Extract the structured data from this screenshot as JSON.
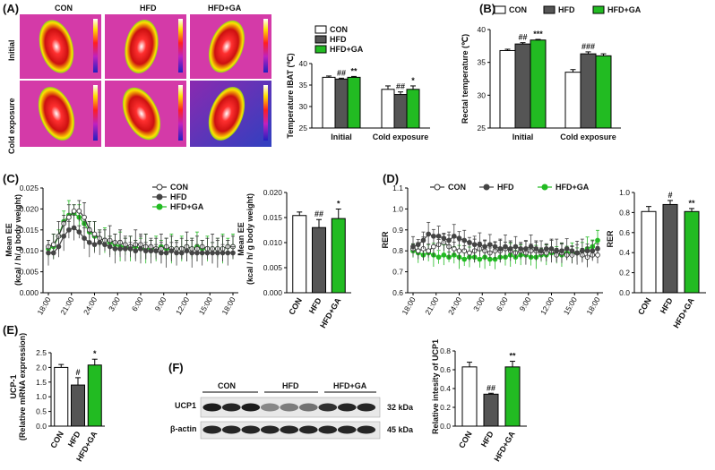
{
  "colors": {
    "con": "#ffffff",
    "hfd": "#555555",
    "hfdga": "#22bb22",
    "pink": "#d43aa8"
  },
  "panels": {
    "a": {
      "label": "(A)",
      "col_con": "CON",
      "col_hfd": "HFD",
      "col_hfdga": "HFD+GA",
      "row_initial": "Initial",
      "row_cold": "Cold exposure"
    },
    "f": {
      "label": "(F)",
      "con": "CON",
      "hfd": "HFD",
      "hfdga": "HFD+GA",
      "ucp1": "UCP1",
      "actin": "β-actin",
      "kda32": "32 kDa",
      "kda45": "45 kDa"
    }
  },
  "chart_data": [
    {
      "id": "a_chart",
      "type": "bar",
      "ylabel": "Temperature IBAT (℃)",
      "ylim": [
        25,
        40
      ],
      "yticks": [
        "25",
        "30",
        "35",
        "40"
      ],
      "groups": [
        "Initial",
        "Cold exposure"
      ],
      "legend": [
        "CON",
        "HFD",
        "HFD+GA"
      ],
      "series": [
        {
          "name": "CON",
          "values": [
            36.8,
            34.0
          ],
          "err": [
            0.3,
            0.8
          ]
        },
        {
          "name": "HFD",
          "values": [
            36.4,
            32.8
          ],
          "err": [
            0.2,
            0.6
          ]
        },
        {
          "name": "HFD+GA",
          "values": [
            36.8,
            34.0
          ],
          "err": [
            0.2,
            0.8
          ]
        }
      ],
      "annotations": [
        [
          "",
          "##",
          "**"
        ],
        [
          "",
          "##",
          "*"
        ]
      ]
    },
    {
      "id": "b_chart",
      "label": "(B)",
      "type": "bar",
      "ylabel": "Rectal temperature (℃)",
      "ylim": [
        25,
        40
      ],
      "yticks": [
        "25",
        "30",
        "35",
        "40"
      ],
      "groups": [
        "Initial",
        "Cold exposure"
      ],
      "legend": [
        "CON",
        "HFD",
        "HFD+GA"
      ],
      "series": [
        {
          "name": "CON",
          "values": [
            36.8,
            33.5
          ],
          "err": [
            0.2,
            0.4
          ]
        },
        {
          "name": "HFD",
          "values": [
            37.8,
            36.3
          ],
          "err": [
            0.2,
            0.3
          ]
        },
        {
          "name": "HFD+GA",
          "values": [
            38.4,
            36.0
          ],
          "err": [
            0.1,
            0.3
          ]
        }
      ],
      "annotations": [
        [
          "",
          "##",
          "***"
        ],
        [
          "",
          "###",
          ""
        ]
      ]
    },
    {
      "id": "c_line",
      "label": "(C)",
      "type": "line",
      "ylabel": "Mean EE",
      "ylabel2": "(kcal / h/ g body weight)",
      "ylim": [
        0,
        0.025
      ],
      "yticks": [
        "0.000",
        "0.005",
        "0.010",
        "0.015",
        "0.020",
        "0.025"
      ],
      "xticks": [
        "18:00",
        "21:00",
        "24:00",
        "3:00",
        "6:00",
        "9:00",
        "12:00",
        "15:00",
        "18:00"
      ],
      "legend": [
        "CON",
        "HFD",
        "HFD+GA"
      ],
      "series": [
        {
          "name": "CON",
          "values": [
            0.011,
            0.0115,
            0.0135,
            0.0165,
            0.018,
            0.0195,
            0.0195,
            0.018,
            0.015,
            0.014,
            0.013,
            0.0125,
            0.0125,
            0.012,
            0.012,
            0.0115,
            0.011,
            0.0115,
            0.0115,
            0.011,
            0.011,
            0.0105,
            0.0105,
            0.011,
            0.0105,
            0.0105,
            0.0105,
            0.011,
            0.0105,
            0.0105,
            0.011,
            0.0105,
            0.0105,
            0.0105,
            0.0105,
            0.011,
            0.011
          ]
        },
        {
          "name": "HFD",
          "values": [
            0.0095,
            0.0095,
            0.011,
            0.0135,
            0.015,
            0.0155,
            0.0145,
            0.013,
            0.012,
            0.0115,
            0.012,
            0.0115,
            0.011,
            0.0105,
            0.0105,
            0.0105,
            0.0105,
            0.01,
            0.0105,
            0.01,
            0.01,
            0.01,
            0.0095,
            0.0095,
            0.01,
            0.0095,
            0.0095,
            0.01,
            0.0095,
            0.0095,
            0.0095,
            0.0095,
            0.0095,
            0.0095,
            0.0095,
            0.0095,
            0.0095
          ]
        },
        {
          "name": "HFD+GA",
          "values": [
            0.0105,
            0.011,
            0.0135,
            0.017,
            0.0185,
            0.019,
            0.018,
            0.0165,
            0.0145,
            0.0135,
            0.013,
            0.0125,
            0.012,
            0.0115,
            0.011,
            0.011,
            0.0105,
            0.011,
            0.0105,
            0.0105,
            0.0105,
            0.0105,
            0.011,
            0.0105,
            0.0105,
            0.0105,
            0.0105,
            0.011,
            0.0105,
            0.011,
            0.0105,
            0.0105,
            0.0105,
            0.0105,
            0.0105,
            0.011,
            0.011
          ]
        }
      ],
      "err": 0.0025
    },
    {
      "id": "c_bar",
      "type": "bar",
      "ylabel": "Mean EE",
      "ylabel2": "(kcal / h/ g body weight)",
      "ylim": [
        0,
        0.02
      ],
      "yticks": [
        "0.000",
        "0.005",
        "0.010",
        "0.015",
        "0.020"
      ],
      "categories": [
        "CON",
        "HFD",
        "HFD+GA"
      ],
      "values": [
        0.0154,
        0.013,
        0.0148
      ],
      "err": [
        0.0007,
        0.0016,
        0.0019
      ],
      "annotations": [
        "",
        "##",
        "*"
      ]
    },
    {
      "id": "d_line",
      "label": "(D)",
      "type": "line",
      "ylabel": "RER",
      "ylim": [
        0.6,
        1.1
      ],
      "yticks": [
        "0.6",
        "0.7",
        "0.8",
        "0.9",
        "1.0",
        "1.1"
      ],
      "xticks": [
        "18:00",
        "21:00",
        "24:00",
        "3:00",
        "6:00",
        "9:00",
        "12:00",
        "15:00",
        "18:00"
      ],
      "legend": [
        "CON",
        "HFD",
        "HFD+GA"
      ],
      "series": [
        {
          "name": "CON",
          "values": [
            0.81,
            0.8,
            0.81,
            0.8,
            0.82,
            0.83,
            0.84,
            0.82,
            0.81,
            0.8,
            0.8,
            0.79,
            0.8,
            0.81,
            0.8,
            0.79,
            0.8,
            0.8,
            0.81,
            0.8,
            0.79,
            0.8,
            0.79,
            0.8,
            0.8,
            0.79,
            0.79,
            0.8,
            0.78,
            0.79,
            0.78,
            0.78,
            0.79,
            0.78,
            0.77,
            0.78,
            0.78
          ]
        },
        {
          "name": "HFD",
          "values": [
            0.82,
            0.83,
            0.85,
            0.88,
            0.87,
            0.87,
            0.86,
            0.85,
            0.87,
            0.86,
            0.85,
            0.84,
            0.83,
            0.83,
            0.82,
            0.83,
            0.82,
            0.81,
            0.82,
            0.81,
            0.82,
            0.81,
            0.81,
            0.82,
            0.81,
            0.8,
            0.81,
            0.81,
            0.8,
            0.8,
            0.81,
            0.8,
            0.79,
            0.8,
            0.8,
            0.8,
            0.81
          ]
        },
        {
          "name": "HFD+GA",
          "values": [
            0.8,
            0.79,
            0.78,
            0.79,
            0.78,
            0.77,
            0.78,
            0.77,
            0.78,
            0.77,
            0.76,
            0.77,
            0.77,
            0.76,
            0.77,
            0.76,
            0.76,
            0.77,
            0.77,
            0.78,
            0.77,
            0.78,
            0.78,
            0.77,
            0.77,
            0.78,
            0.78,
            0.79,
            0.78,
            0.78,
            0.79,
            0.79,
            0.79,
            0.8,
            0.81,
            0.82,
            0.85
          ]
        }
      ],
      "err": 0.04
    },
    {
      "id": "d_bar",
      "type": "bar",
      "ylabel": "RER",
      "ylim": [
        0,
        1.0
      ],
      "yticks": [
        "0.0",
        "0.2",
        "0.4",
        "0.6",
        "0.8",
        "1.0"
      ],
      "categories": [
        "CON",
        "HFD",
        "HFD+GA"
      ],
      "values": [
        0.81,
        0.88,
        0.81
      ],
      "err": [
        0.05,
        0.04,
        0.03
      ],
      "annotations": [
        "",
        "#",
        "**"
      ]
    },
    {
      "id": "e_bar",
      "label": "(E)",
      "type": "bar",
      "ylabel": "UCP-1",
      "ylabel2": "(Relative mRNA expression)",
      "ylim": [
        0,
        2.5
      ],
      "yticks": [
        "0.0",
        "0.5",
        "1.0",
        "1.5",
        "2.0",
        "2.5"
      ],
      "categories": [
        "CON",
        "HFD",
        "HFD+GA"
      ],
      "values": [
        2.0,
        1.4,
        2.08
      ],
      "err": [
        0.1,
        0.25,
        0.2
      ],
      "annotations": [
        "",
        "#",
        "*"
      ]
    },
    {
      "id": "f_bar",
      "type": "bar",
      "ylabel": "Relative intesity of UCP1",
      "ylim": [
        0,
        0.8
      ],
      "yticks": [
        "0.0",
        "0.2",
        "0.4",
        "0.6",
        "0.8"
      ],
      "categories": [
        "CON",
        "HFD",
        "HFD+GA"
      ],
      "values": [
        0.63,
        0.34,
        0.63
      ],
      "err": [
        0.05,
        0.01,
        0.06
      ],
      "annotations": [
        "",
        "##",
        "**"
      ]
    }
  ]
}
